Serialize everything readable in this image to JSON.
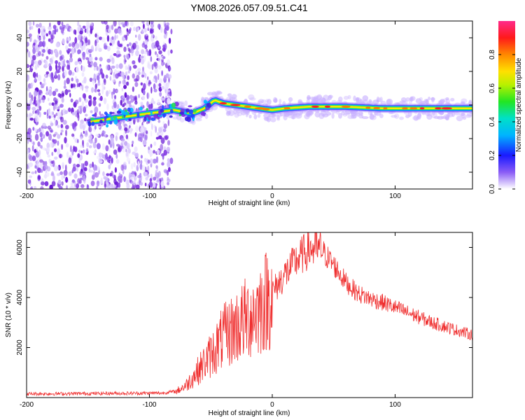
{
  "title": "YM08.2026.057.09.51.C41",
  "chart_data": [
    {
      "type": "heatmap",
      "title": "YM08.2026.057.09.51.C41",
      "xlabel": "Height of straight line (km)",
      "ylabel": "Frequency (Hz)",
      "xlim": [
        -200,
        163
      ],
      "ylim": [
        -50,
        50
      ],
      "xticks": [
        -200,
        -100,
        0,
        100
      ],
      "yticks": [
        -40,
        -20,
        0,
        20,
        40
      ],
      "colorbar": {
        "label": "Normalized spectral amplitude",
        "range": [
          0,
          1
        ],
        "ticks": [
          0.0,
          0.2,
          0.4,
          0.6,
          0.8
        ],
        "tick_labels": [
          "0.0",
          "0.2",
          "0.4",
          "0.6",
          "0.8"
        ]
      },
      "ridge": {
        "x": [
          -148,
          -130,
          -110,
          -90,
          -80,
          -65,
          -55,
          -47,
          -40,
          -30,
          -20,
          -10,
          0,
          10,
          30,
          60,
          90,
          120,
          150,
          163
        ],
        "y": [
          -10,
          -8,
          -6,
          -4,
          -3,
          -5,
          -2,
          3,
          1,
          0,
          -1,
          -2,
          -3,
          -2,
          -1,
          -1,
          -2,
          -2,
          -2,
          -2
        ]
      }
    },
    {
      "type": "line",
      "xlabel": "Height of straight line (km)",
      "ylabel": "SNR (10 * v/v)",
      "xlim": [
        -200,
        163
      ],
      "ylim": [
        0,
        6600
      ],
      "xticks": [
        -200,
        -100,
        0,
        100
      ],
      "yticks": [
        2000,
        4000,
        6000
      ],
      "series": [
        {
          "name": "SNR",
          "color": "#ef2d2d",
          "x": [
            -200,
            -90,
            -78,
            -70,
            -60,
            -50,
            -40,
            -30,
            -20,
            -10,
            0,
            10,
            20,
            30,
            40,
            50,
            60,
            70,
            80,
            90,
            100,
            110,
            120,
            130,
            140,
            150,
            163
          ],
          "y": [
            150,
            180,
            250,
            500,
            1100,
            1700,
            2400,
            2800,
            3200,
            3600,
            4200,
            4900,
            5500,
            5950,
            5900,
            5300,
            4600,
            4150,
            3950,
            3800,
            3600,
            3400,
            3200,
            3000,
            2850,
            2700,
            2500
          ]
        }
      ]
    }
  ]
}
